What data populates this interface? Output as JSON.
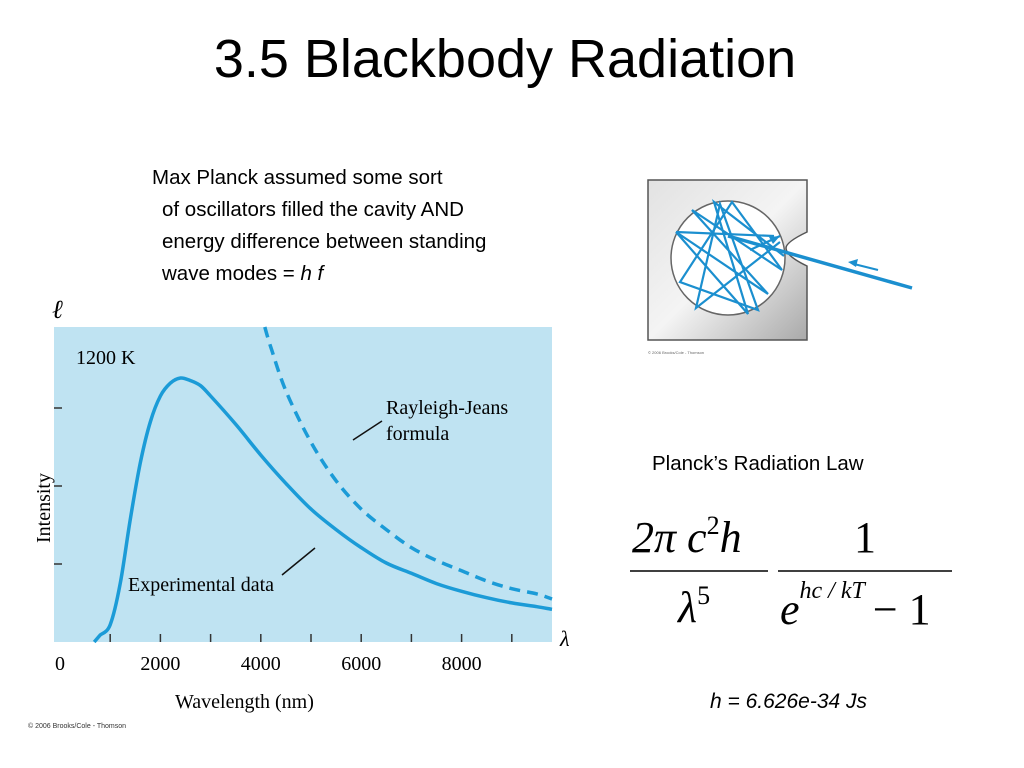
{
  "title": "3.5 Blackbody Radiation",
  "description": {
    "line1": "Max Planck assumed some sort",
    "line2": "of oscillators filled the cavity AND",
    "line3": "energy difference between standing",
    "line4_prefix": "wave modes = ",
    "line4_expr": "h f"
  },
  "graph": {
    "y_symbol": "ℓ",
    "x_symbol": "λ",
    "temperature_label": "1200 K",
    "rj_label_1": "Rayleigh-Jeans",
    "rj_label_2": "formula",
    "exp_label": "Experimental data",
    "ylabel": "Intensity",
    "xlabel": "Wavelength (nm)",
    "xticks": [
      "0",
      "2000",
      "4000",
      "6000",
      "8000"
    ],
    "credit": "© 2006 Brooks/Cole - Thomson",
    "bg_color": "#bfe3f2",
    "curve_color": "#1b9bd7"
  },
  "cavity": {
    "credit": "© 2006 Brooks/Cole - Thomson"
  },
  "law": {
    "title": "Planck’s Radiation Law",
    "num1": "2π c",
    "num1_sup": "2",
    "num1_h": "h",
    "den1": "λ",
    "den1_sup": "5",
    "num2": "1",
    "den2_e": "e",
    "den2_exp": "hc / kT",
    "den2_minus": "− 1"
  },
  "constant": "h = 6.626e-34 Js",
  "chart_data": {
    "type": "line",
    "xlabel": "Wavelength (nm)",
    "ylabel": "Intensity",
    "xticks": [
      0,
      2000,
      4000,
      6000,
      8000
    ],
    "xlim": [
      0,
      10000
    ],
    "series": [
      {
        "name": "Experimental data",
        "style": "solid",
        "x": [
          800,
          1000,
          1200,
          1400,
          1600,
          1800,
          2000,
          2200,
          2400,
          2600,
          2800,
          3000,
          3500,
          4000,
          4500,
          5000,
          5500,
          6000,
          6500,
          7000,
          7500,
          8000,
          8500,
          9000,
          9500,
          10000
        ],
        "y": [
          0.0,
          0.04,
          0.2,
          0.45,
          0.67,
          0.83,
          0.93,
          0.98,
          1.0,
          0.99,
          0.97,
          0.93,
          0.82,
          0.7,
          0.59,
          0.49,
          0.41,
          0.34,
          0.28,
          0.24,
          0.2,
          0.17,
          0.145,
          0.125,
          0.11,
          0.1
        ]
      },
      {
        "name": "Rayleigh-Jeans formula",
        "style": "dashed",
        "x": [
          4000,
          4200,
          4500,
          5000,
          5500,
          6000,
          6500,
          7000,
          7500,
          8000,
          8500,
          9000,
          9500,
          10000
        ],
        "y": [
          1.25,
          1.12,
          0.95,
          0.75,
          0.6,
          0.49,
          0.41,
          0.34,
          0.29,
          0.25,
          0.21,
          0.18,
          0.16,
          0.14
        ]
      }
    ],
    "annotations": [
      "1200 K",
      "Rayleigh-Jeans formula",
      "Experimental data"
    ]
  }
}
